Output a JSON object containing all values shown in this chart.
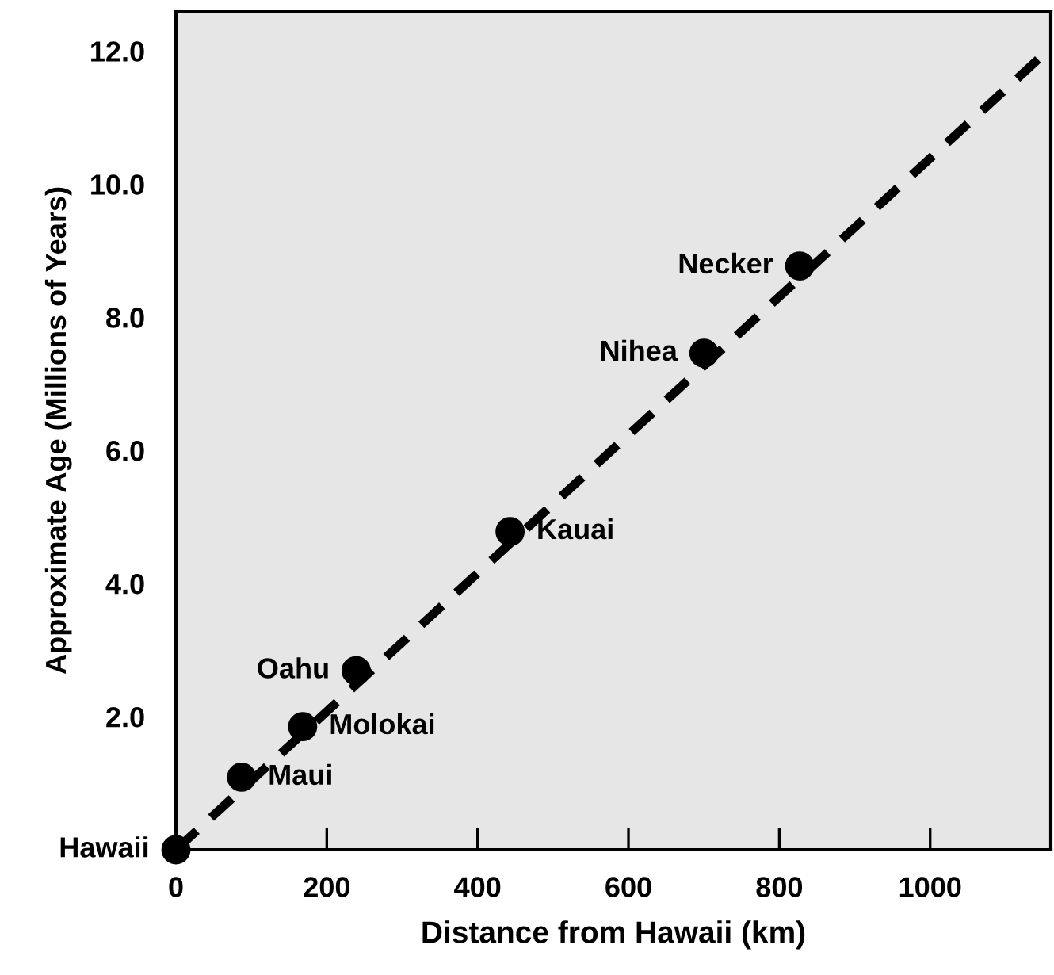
{
  "chart_data": {
    "type": "scatter",
    "xlabel": "Distance from Hawaii (km)",
    "ylabel": "Approximate Age (Millions of Years)",
    "xlim": [
      0,
      1160
    ],
    "ylim": [
      0,
      12.6
    ],
    "xticks": [
      0,
      200,
      400,
      600,
      800,
      1000
    ],
    "yticks": [
      {
        "value": 2.0,
        "label": "2.0"
      },
      {
        "value": 4.0,
        "label": "4.0"
      },
      {
        "value": 6.0,
        "label": "6.0"
      },
      {
        "value": 8.0,
        "label": "8.0"
      },
      {
        "value": 10.0,
        "label": "10.0"
      },
      {
        "value": 12.0,
        "label": "12.0"
      }
    ],
    "grid": false,
    "legend": false,
    "marker": "circle",
    "series": [
      {
        "type": "line",
        "color": "#000000",
        "line_style": "dashed",
        "marker": "none",
        "x": [
          0,
          1160
        ],
        "values": [
          0,
          12.05
        ]
      },
      {
        "color": "#000000",
        "x": [
          0,
          87,
          168,
          239,
          443,
          700,
          827
        ],
        "values": [
          0,
          1.09,
          1.85,
          2.69,
          4.78,
          7.46,
          8.77
        ]
      }
    ],
    "annotations": [
      {
        "text": "Hawaii",
        "x": 0,
        "y": 0
      },
      {
        "text": "Maui",
        "x": 87,
        "y": 1.09
      },
      {
        "text": "Molokai",
        "x": 168,
        "y": 1.85
      },
      {
        "text": "Oahu",
        "x": 239,
        "y": 2.69
      },
      {
        "text": "Kauai",
        "x": 443,
        "y": 4.78
      },
      {
        "text": "Nihea",
        "x": 700,
        "y": 7.46
      },
      {
        "text": "Necker",
        "x": 827,
        "y": 8.77
      }
    ]
  }
}
